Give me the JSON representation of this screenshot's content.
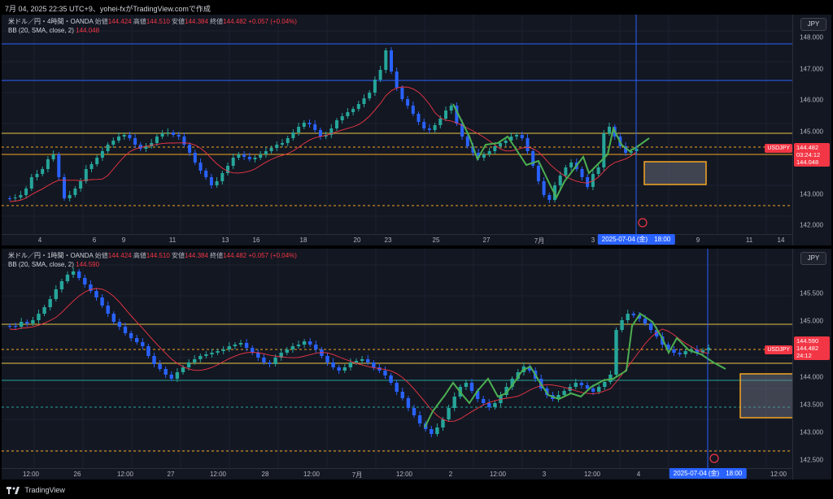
{
  "header": {
    "title": "7月 04, 2025 22:35 UTC+9、yohei-fxがTradingView.comで作成"
  },
  "footer": {
    "brand": "TradingView"
  },
  "colors": {
    "up": "#26a69a",
    "down": "#2962ff",
    "bb": "#f23645",
    "yellow": "#e8c547",
    "blue_line": "#2962ff",
    "green_draw": "#4caf50"
  },
  "panes": [
    {
      "id": "top",
      "legend": {
        "symbol": "米ドル／円・4時間・OANDA",
        "open_label": "始値",
        "open": "144.424",
        "high_label": "高値",
        "high": "144.510",
        "low_label": "安値",
        "low": "144.384",
        "close_label": "終値",
        "close": "144.482",
        "change": "+0.057 (+0.04%)",
        "bb_label": "BB (20, SMA, close, 2)",
        "bb_value": "144.048"
      },
      "currency": "JPY",
      "y_ticks": [
        "148.000",
        "147.000",
        "146.000",
        "145.000",
        "144.000",
        "143.000",
        "142.000"
      ],
      "x_ticks": [
        "4",
        "6",
        "9",
        "11",
        "13",
        "16",
        "18",
        "20",
        "23",
        "25",
        "27",
        "7月",
        "3",
        "9",
        "11",
        "14"
      ],
      "cross_date": "2025-07-04 (金)　18:00",
      "price_tag": "USDJPY",
      "axis_tag": {
        "price": "144.482",
        "countdown": "03:24:12",
        "bb": "144.048"
      }
    },
    {
      "id": "bottom",
      "legend": {
        "symbol": "米ドル／円・1時間・OANDA",
        "open_label": "始値",
        "open": "144.424",
        "high_label": "高値",
        "high": "144.510",
        "low_label": "安値",
        "low": "144.384",
        "close_label": "終値",
        "close": "144.482",
        "change": "+0.057 (+0.04%)",
        "bb_label": "BB (20, SMA, close, 2)",
        "bb_value": "144.590"
      },
      "currency": "JPY",
      "y_ticks": [
        "145.500",
        "145.000",
        "144.500",
        "144.000",
        "143.500",
        "143.000",
        "142.500"
      ],
      "x_ticks": [
        "12:00",
        "26",
        "12:00",
        "27",
        "12:00",
        "28",
        "12:00",
        "7月",
        "12:00",
        "2",
        "12:00",
        "3",
        "12:00",
        "4",
        "12:00"
      ],
      "cross_date": "2025-07-04 (金)　18:00",
      "price_tag": "USDJPY",
      "axis_tag": {
        "bb": "144.590",
        "price": "144.482",
        "countdown": "24:12"
      }
    }
  ]
}
